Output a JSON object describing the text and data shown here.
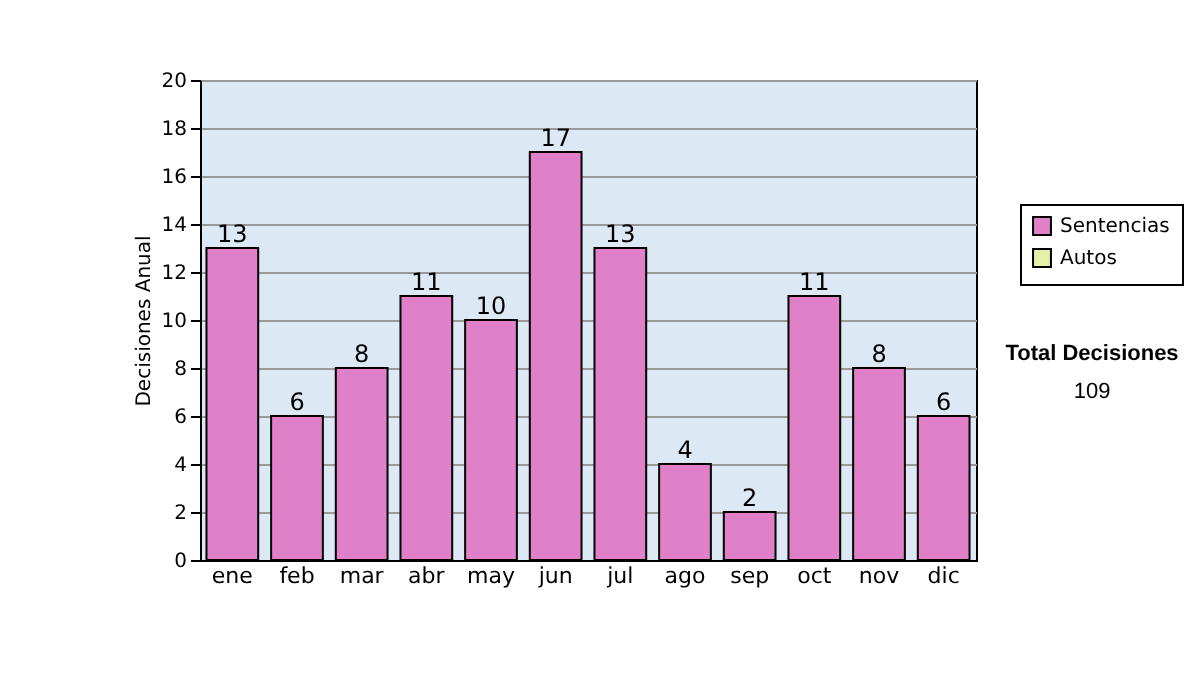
{
  "chart_data": {
    "type": "bar",
    "ylabel": "Decisiones Anual",
    "categories": [
      "ene",
      "feb",
      "mar",
      "abr",
      "may",
      "jun",
      "jul",
      "ago",
      "sep",
      "oct",
      "nov",
      "dic"
    ],
    "series": [
      {
        "name": "Sentencias",
        "color": "#e080c8",
        "values": [
          13,
          6,
          8,
          11,
          10,
          17,
          13,
          4,
          2,
          11,
          8,
          6
        ]
      },
      {
        "name": "Autos",
        "color": "#e6f0a8",
        "values": [
          null,
          null,
          null,
          null,
          null,
          null,
          null,
          null,
          null,
          null,
          null,
          null
        ]
      }
    ],
    "ylim": [
      0,
      20
    ],
    "yticks": [
      0,
      2,
      4,
      6,
      8,
      10,
      12,
      14,
      16,
      18,
      20
    ],
    "grid": "y",
    "legend": "right",
    "data_labels": true,
    "annotations": [
      "Total Decisiones",
      "109"
    ]
  }
}
